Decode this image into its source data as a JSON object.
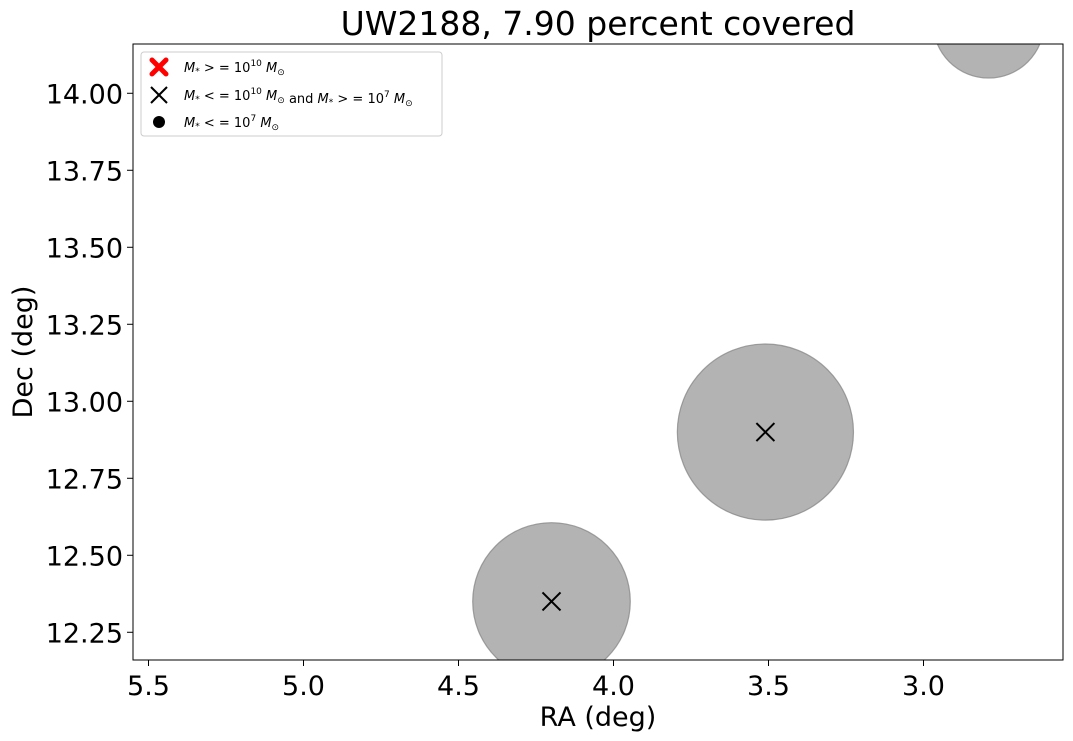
{
  "chart_data": {
    "type": "scatter",
    "title": "UW2188, 7.90 percent covered",
    "xlabel": "RA (deg)",
    "ylabel": "Dec (deg)",
    "xlim": [
      5.55,
      2.55
    ],
    "ylim": [
      12.16,
      14.16
    ],
    "x_inverted": true,
    "grid": false,
    "legend_position": "top-left",
    "x_ticks": [
      5.5,
      5.0,
      4.5,
      4.0,
      3.5,
      3.0
    ],
    "x_tick_labels": [
      "5.5",
      "5.0",
      "4.5",
      "4.0",
      "3.5",
      "3.0"
    ],
    "y_ticks": [
      12.25,
      12.5,
      12.75,
      13.0,
      13.25,
      13.5,
      13.75,
      14.0
    ],
    "y_tick_labels": [
      "12.25",
      "12.50",
      "12.75",
      "13.00",
      "13.25",
      "13.50",
      "13.75",
      "14.00"
    ],
    "legend": [
      {
        "marker": "X",
        "color": "#ff0000",
        "label_parts": [
          "M",
          "* ",
          "> = 10",
          "10",
          "M",
          "⊙"
        ]
      },
      {
        "marker": "x",
        "color": "#000000",
        "label_parts": [
          "M",
          "* ",
          "< = 10",
          "10",
          "M",
          "⊙",
          " and ",
          "M",
          "* ",
          "> = 10",
          "7",
          "M",
          "⊙"
        ]
      },
      {
        "marker": "o",
        "color": "#000000",
        "label_parts": [
          "M",
          "* ",
          "< = 10",
          "7",
          "M",
          "⊙"
        ]
      }
    ],
    "coverage_circles": [
      {
        "ra": 4.2,
        "dec": 12.35,
        "radius_deg": 0.255
      },
      {
        "ra": 3.51,
        "dec": 12.9,
        "radius_deg": 0.285
      },
      {
        "ra": 2.79,
        "dec": 14.23,
        "radius_deg": 0.18
      }
    ],
    "circle_color": "#808080",
    "circle_alpha": 0.6,
    "points": [
      {
        "ra": 4.2,
        "dec": 12.35,
        "class": "mid-mass"
      },
      {
        "ra": 3.51,
        "dec": 12.9,
        "class": "mid-mass"
      }
    ]
  }
}
